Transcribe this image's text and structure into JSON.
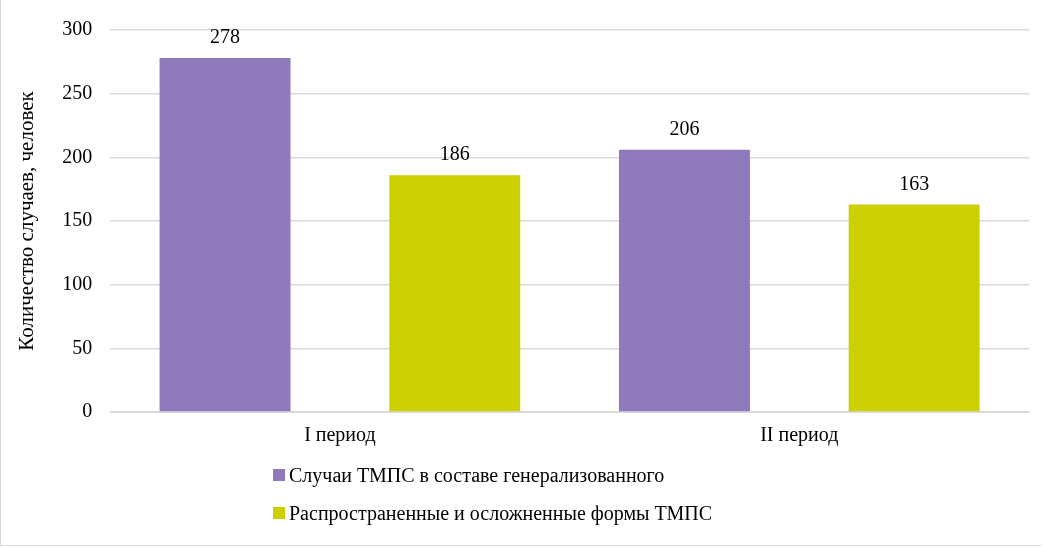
{
  "chart_data": {
    "type": "bar",
    "ylabel": "Количество случаев, человек",
    "categories": [
      "I период",
      "II период"
    ],
    "series": [
      {
        "name": "Случаи ТМПС в составе генерализованного",
        "color": "#9079bb",
        "values": [
          278,
          206
        ]
      },
      {
        "name": "Распространенные и осложненные формы ТМПС",
        "color": "#cdd000",
        "values": [
          186,
          163
        ]
      }
    ],
    "ylim": [
      0,
      300
    ],
    "yticks": [
      0,
      50,
      100,
      150,
      200,
      250,
      300
    ],
    "grid": "y",
    "legend": "bottom",
    "data_labels": true
  }
}
